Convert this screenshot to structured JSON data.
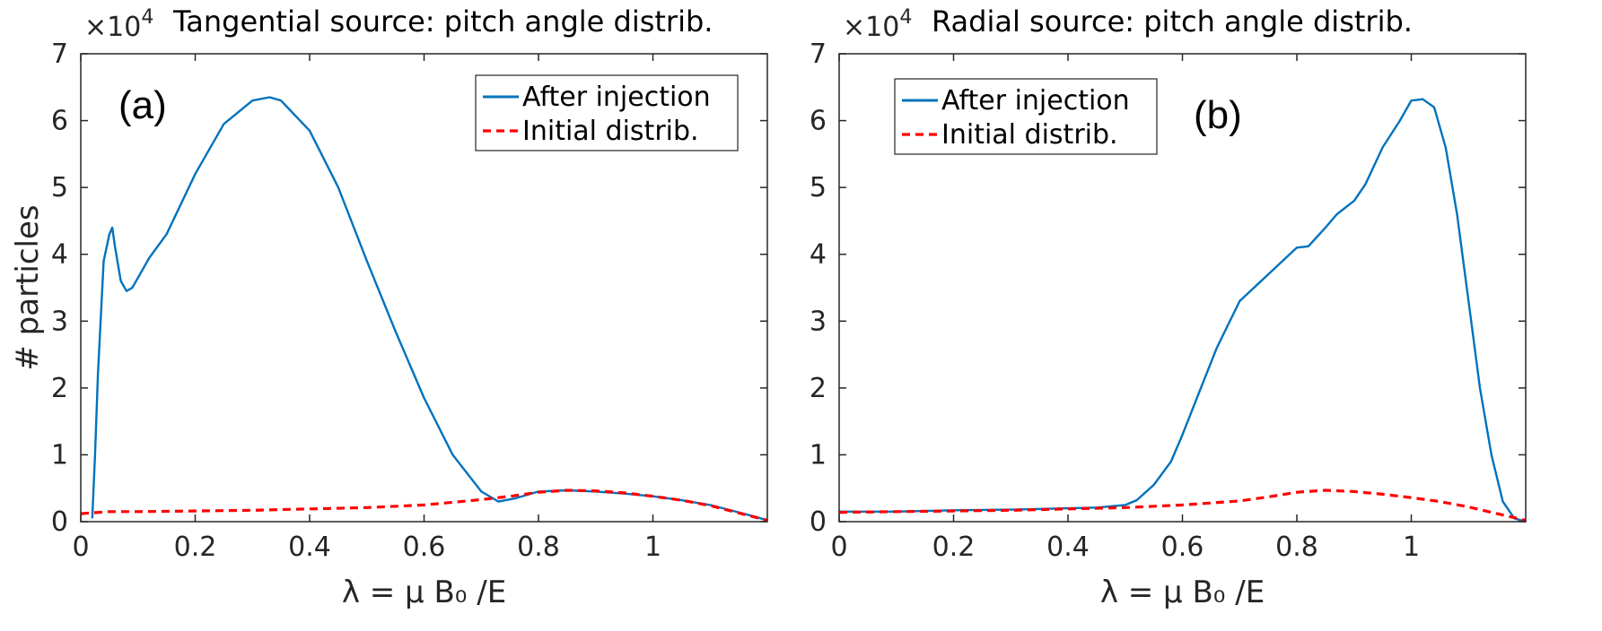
{
  "chart_data": [
    {
      "type": "line",
      "panel_label": "(a)",
      "title": "Tangential source: pitch angle distrib.",
      "xlabel": "λ = μ B₀ /E",
      "ylabel": "# particles",
      "multiplier_base": "×10",
      "multiplier_exp": "4",
      "xlim": [
        0,
        1.2
      ],
      "ylim": [
        0,
        7
      ],
      "xticks": [
        0,
        0.2,
        0.4,
        0.6,
        0.8,
        1
      ],
      "xtick_labels": [
        "0",
        "0.2",
        "0.4",
        "0.6",
        "0.8",
        "1"
      ],
      "yticks": [
        0,
        1,
        2,
        3,
        4,
        5,
        6,
        7
      ],
      "ytick_labels": [
        "0",
        "1",
        "2",
        "3",
        "4",
        "5",
        "6",
        "7"
      ],
      "legend_position": "top-right",
      "series": [
        {
          "name": "After injection",
          "color": "#0072BD",
          "style": "solid",
          "x": [
            0.02,
            0.025,
            0.03,
            0.04,
            0.05,
            0.055,
            0.06,
            0.07,
            0.08,
            0.09,
            0.1,
            0.12,
            0.15,
            0.2,
            0.25,
            0.3,
            0.33,
            0.35,
            0.4,
            0.45,
            0.5,
            0.55,
            0.6,
            0.65,
            0.7,
            0.73,
            0.76,
            0.8,
            0.85,
            0.9,
            0.95,
            1.0,
            1.05,
            1.1,
            1.15,
            1.18,
            1.2
          ],
          "values": [
            0.05,
            1.0,
            2.2,
            3.9,
            4.3,
            4.4,
            4.1,
            3.6,
            3.45,
            3.5,
            3.65,
            3.95,
            4.3,
            5.2,
            5.95,
            6.3,
            6.35,
            6.3,
            5.85,
            5.0,
            3.9,
            2.85,
            1.85,
            1.0,
            0.45,
            0.3,
            0.35,
            0.45,
            0.47,
            0.45,
            0.42,
            0.38,
            0.32,
            0.25,
            0.14,
            0.07,
            0.02
          ]
        },
        {
          "name": "Initial distrib.",
          "color": "#FF0000",
          "style": "dashed",
          "x": [
            0.0,
            0.05,
            0.1,
            0.2,
            0.3,
            0.4,
            0.5,
            0.6,
            0.7,
            0.75,
            0.8,
            0.85,
            0.9,
            0.95,
            1.0,
            1.05,
            1.1,
            1.15,
            1.2
          ],
          "values": [
            0.12,
            0.15,
            0.15,
            0.16,
            0.17,
            0.19,
            0.21,
            0.25,
            0.33,
            0.38,
            0.44,
            0.47,
            0.46,
            0.43,
            0.38,
            0.32,
            0.24,
            0.13,
            0.02
          ]
        }
      ]
    },
    {
      "type": "line",
      "panel_label": "(b)",
      "title": "Radial source: pitch angle distrib.",
      "xlabel": "λ = μ B₀ /E",
      "ylabel": "",
      "multiplier_base": "×10",
      "multiplier_exp": "4",
      "xlim": [
        0,
        1.2
      ],
      "ylim": [
        0,
        7
      ],
      "xticks": [
        0,
        0.2,
        0.4,
        0.6,
        0.8,
        1
      ],
      "xtick_labels": [
        "0",
        "0.2",
        "0.4",
        "0.6",
        "0.8",
        "1"
      ],
      "yticks": [
        0,
        1,
        2,
        3,
        4,
        5,
        6,
        7
      ],
      "ytick_labels": [
        "0",
        "1",
        "2",
        "3",
        "4",
        "5",
        "6",
        "7"
      ],
      "legend_position": "top-left",
      "series": [
        {
          "name": "After injection",
          "color": "#0072BD",
          "style": "solid",
          "x": [
            0.0,
            0.1,
            0.2,
            0.3,
            0.4,
            0.45,
            0.5,
            0.52,
            0.55,
            0.58,
            0.6,
            0.63,
            0.66,
            0.7,
            0.75,
            0.8,
            0.82,
            0.85,
            0.87,
            0.9,
            0.92,
            0.95,
            0.98,
            1.0,
            1.02,
            1.04,
            1.06,
            1.08,
            1.1,
            1.12,
            1.14,
            1.16,
            1.18,
            1.2
          ],
          "values": [
            0.15,
            0.15,
            0.17,
            0.18,
            0.2,
            0.21,
            0.25,
            0.32,
            0.55,
            0.9,
            1.3,
            1.95,
            2.6,
            3.3,
            3.7,
            4.1,
            4.12,
            4.4,
            4.6,
            4.8,
            5.05,
            5.6,
            6.0,
            6.3,
            6.32,
            6.2,
            5.6,
            4.6,
            3.3,
            2.0,
            1.0,
            0.3,
            0.05,
            0.0
          ]
        },
        {
          "name": "Initial distrib.",
          "color": "#FF0000",
          "style": "dashed",
          "x": [
            0.0,
            0.1,
            0.2,
            0.3,
            0.4,
            0.5,
            0.6,
            0.7,
            0.75,
            0.8,
            0.85,
            0.9,
            0.95,
            1.0,
            1.05,
            1.1,
            1.15,
            1.2
          ],
          "values": [
            0.14,
            0.15,
            0.16,
            0.17,
            0.19,
            0.21,
            0.25,
            0.31,
            0.37,
            0.44,
            0.47,
            0.45,
            0.41,
            0.36,
            0.3,
            0.22,
            0.12,
            0.02
          ]
        }
      ]
    }
  ]
}
